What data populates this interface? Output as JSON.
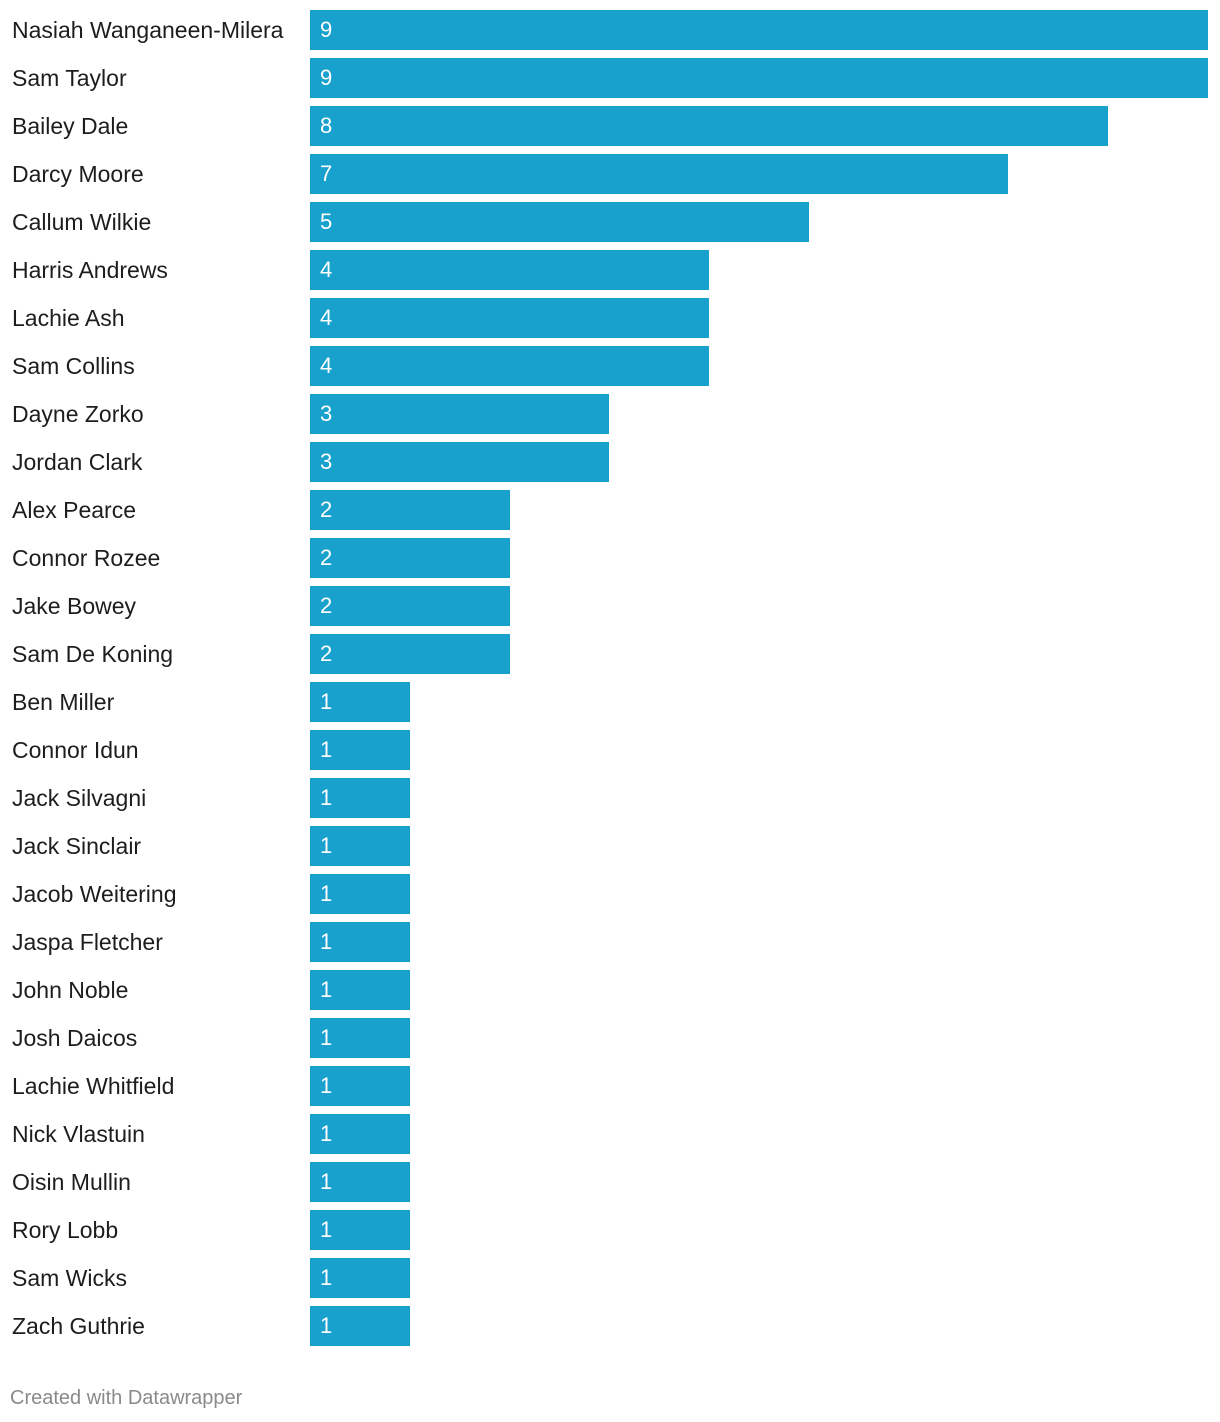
{
  "chart_data": {
    "type": "bar",
    "orientation": "horizontal",
    "categories": [
      "Nasiah Wanganeen-Milera",
      "Sam Taylor",
      "Bailey Dale",
      "Darcy Moore",
      "Callum Wilkie",
      "Harris Andrews",
      "Lachie Ash",
      "Sam Collins",
      "Dayne Zorko",
      "Jordan Clark",
      "Alex Pearce",
      "Connor Rozee",
      "Jake Bowey",
      "Sam De Koning",
      "Ben Miller",
      "Connor Idun",
      "Jack Silvagni",
      "Jack Sinclair",
      "Jacob Weitering",
      "Jaspa Fletcher",
      "John Noble",
      "Josh Daicos",
      "Lachie Whitfield",
      "Nick Vlastuin",
      "Oisin Mullin",
      "Rory Lobb",
      "Sam Wicks",
      "Zach Guthrie"
    ],
    "values": [
      9,
      9,
      8,
      7,
      5,
      4,
      4,
      4,
      3,
      3,
      2,
      2,
      2,
      2,
      1,
      1,
      1,
      1,
      1,
      1,
      1,
      1,
      1,
      1,
      1,
      1,
      1,
      1
    ],
    "xlim": [
      0,
      9
    ],
    "data_labels": "inside-start",
    "grid": false,
    "legend": "none",
    "bar_color": "#18a1cd"
  },
  "footer": {
    "credit": "Created with Datawrapper"
  }
}
